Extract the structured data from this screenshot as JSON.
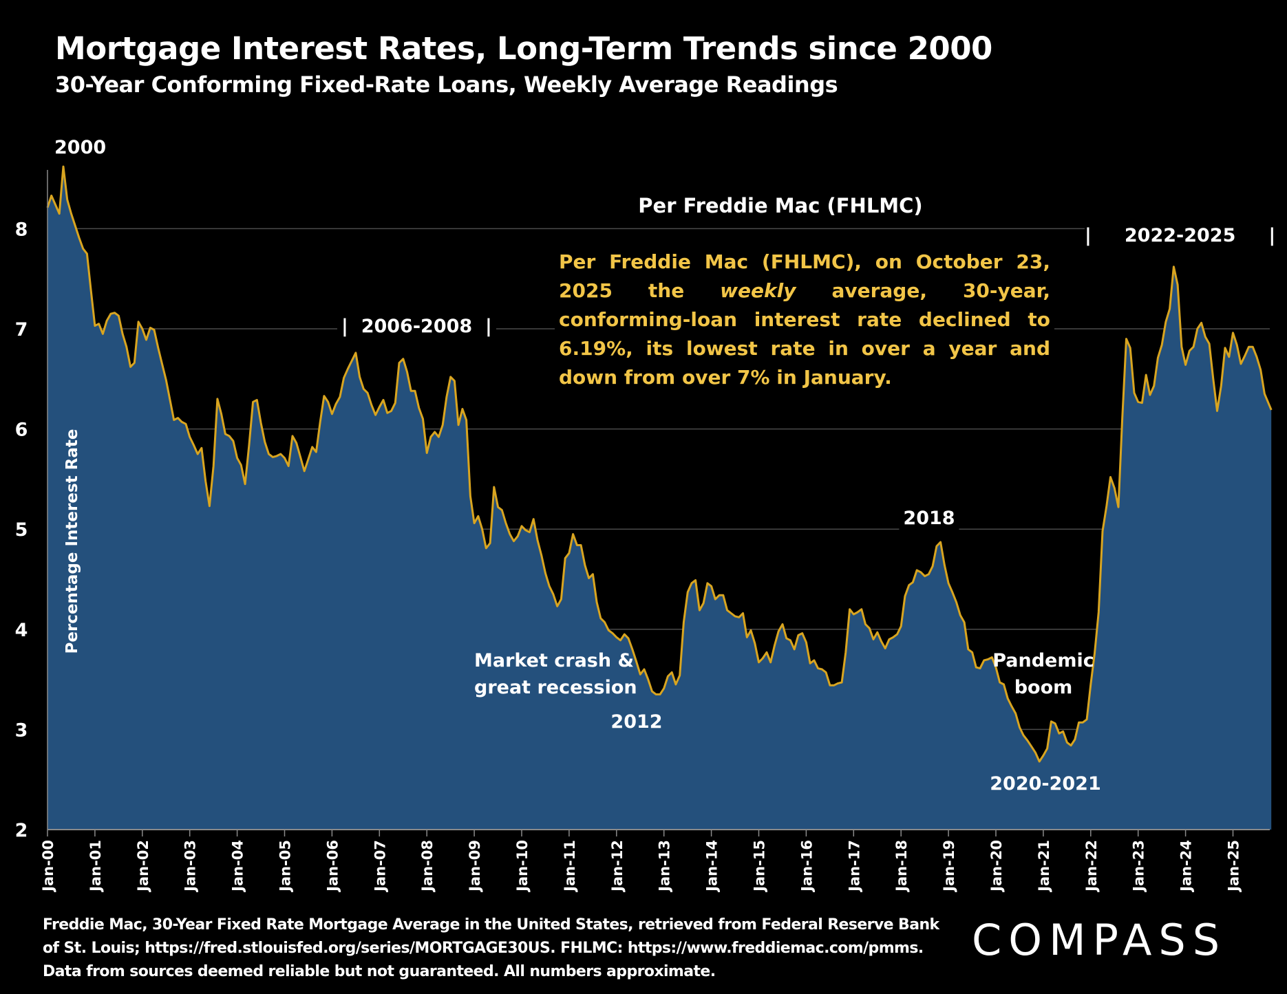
{
  "header": {
    "title": "Mortgage Interest Rates, Long-Term Trends since 2000",
    "subtitle": "30-Year Conforming Fixed-Rate Loans, Weekly Average Readings"
  },
  "annotations": {
    "year_2000": "2000",
    "source_label": "Per Freddie Mac (FHLMC)",
    "period_2006_2008": "2006-2008",
    "period_2022_2025": "2022-2025",
    "bar": "|",
    "label_2018": "2018",
    "market_crash_line1": "Market crash &",
    "market_crash_line2": "great recession",
    "label_2012": "2012",
    "pandemic_line1": "Pandemic",
    "pandemic_line2": "boom",
    "label_2020_2021": "2020-2021",
    "note_part1": "Per Freddie Mac (FHLMC), on October 23, 2025 the ",
    "note_italic": "weekly",
    "note_part2": " average, 30-year, conforming-loan interest rate declined to 6.19%, its lowest rate in over a year and down from over 7% in January."
  },
  "footer": {
    "line1": "Freddie Mac, 30-Year Fixed Rate Mortgage Average in the United States, retrieved from Federal Reserve Bank",
    "line2": "of St. Louis; https://fred.stlouisfed.org/series/MORTGAGE30US. FHLMC: https://www.freddiemac.com/pmms.",
    "line3": "Data from sources deemed reliable but not guaranteed. All numbers approximate."
  },
  "logo": "COMPASS",
  "colors": {
    "background": "#000000",
    "area_fill": "#24507c",
    "line": "#d9a520",
    "note_text": "#f2c547",
    "grid": "#4a4a4a"
  },
  "chart_data": {
    "type": "area",
    "title": "Mortgage Interest Rates, Long-Term Trends since 2000",
    "ylabel": "Percentage Interest Rate",
    "xlabel": "",
    "ylim": [
      2,
      8.6
    ],
    "yticks": [
      2,
      3,
      4,
      5,
      6,
      7,
      8
    ],
    "grid": "horizontal",
    "xticks": [
      "Jan-00",
      "Jan-01",
      "Jan-02",
      "Jan-03",
      "Jan-04",
      "Jan-05",
      "Jan-06",
      "Jan-07",
      "Jan-08",
      "Jan-09",
      "Jan-10",
      "Jan-11",
      "Jan-12",
      "Jan-13",
      "Jan-14",
      "Jan-15",
      "Jan-16",
      "Jan-17",
      "Jan-18",
      "Jan-19",
      "Jan-20",
      "Jan-21",
      "Jan-22",
      "Jan-23",
      "Jan-24",
      "Jan-25"
    ],
    "start": "2000-01",
    "frequency": "monthly",
    "values": [
      8.21,
      8.33,
      8.24,
      8.15,
      8.62,
      8.29,
      8.15,
      8.03,
      7.91,
      7.8,
      7.75,
      7.38,
      7.03,
      7.05,
      6.95,
      7.08,
      7.15,
      7.16,
      7.13,
      6.95,
      6.82,
      6.62,
      6.66,
      7.07,
      7.0,
      6.89,
      7.01,
      6.99,
      6.81,
      6.65,
      6.49,
      6.29,
      6.09,
      6.11,
      6.07,
      6.05,
      5.92,
      5.84,
      5.75,
      5.81,
      5.48,
      5.23,
      5.63,
      6.3,
      6.15,
      5.95,
      5.93,
      5.88,
      5.71,
      5.64,
      5.45,
      5.83,
      6.27,
      6.29,
      6.06,
      5.87,
      5.75,
      5.72,
      5.73,
      5.75,
      5.71,
      5.63,
      5.93,
      5.86,
      5.72,
      5.58,
      5.7,
      5.82,
      5.77,
      6.07,
      6.33,
      6.27,
      6.15,
      6.25,
      6.32,
      6.51,
      6.6,
      6.68,
      6.76,
      6.52,
      6.4,
      6.36,
      6.24,
      6.14,
      6.22,
      6.29,
      6.16,
      6.18,
      6.26,
      6.66,
      6.7,
      6.57,
      6.38,
      6.38,
      6.21,
      6.1,
      5.76,
      5.92,
      5.97,
      5.92,
      6.04,
      6.32,
      6.52,
      6.48,
      6.04,
      6.2,
      6.09,
      5.33,
      5.06,
      5.13,
      5.0,
      4.81,
      4.86,
      5.42,
      5.22,
      5.19,
      5.06,
      4.95,
      4.88,
      4.93,
      5.03,
      4.99,
      4.97,
      5.1,
      4.89,
      4.74,
      4.56,
      4.43,
      4.35,
      4.23,
      4.3,
      4.71,
      4.76,
      4.95,
      4.84,
      4.84,
      4.64,
      4.51,
      4.55,
      4.27,
      4.11,
      4.07,
      3.99,
      3.96,
      3.92,
      3.89,
      3.95,
      3.91,
      3.8,
      3.68,
      3.55,
      3.6,
      3.5,
      3.38,
      3.35,
      3.35,
      3.41,
      3.53,
      3.57,
      3.45,
      3.54,
      4.07,
      4.37,
      4.46,
      4.49,
      4.19,
      4.26,
      4.46,
      4.43,
      4.3,
      4.34,
      4.34,
      4.19,
      4.16,
      4.13,
      4.12,
      4.16,
      3.92,
      3.99,
      3.86,
      3.67,
      3.71,
      3.77,
      3.67,
      3.84,
      3.98,
      4.05,
      3.91,
      3.89,
      3.8,
      3.94,
      3.96,
      3.87,
      3.66,
      3.69,
      3.61,
      3.6,
      3.57,
      3.44,
      3.44,
      3.46,
      3.47,
      3.77,
      4.2,
      4.15,
      4.17,
      4.2,
      4.05,
      4.01,
      3.9,
      3.97,
      3.88,
      3.81,
      3.9,
      3.92,
      3.95,
      4.03,
      4.33,
      4.44,
      4.47,
      4.59,
      4.57,
      4.53,
      4.55,
      4.63,
      4.83,
      4.87,
      4.64,
      4.46,
      4.37,
      4.27,
      4.14,
      4.07,
      3.8,
      3.77,
      3.62,
      3.61,
      3.69,
      3.7,
      3.72,
      3.62,
      3.47,
      3.45,
      3.31,
      3.23,
      3.16,
      3.02,
      2.94,
      2.89,
      2.83,
      2.77,
      2.68,
      2.74,
      2.81,
      3.08,
      3.06,
      2.96,
      2.98,
      2.87,
      2.84,
      2.9,
      3.07,
      3.07,
      3.1,
      3.45,
      3.76,
      4.17,
      4.98,
      5.23,
      5.52,
      5.41,
      5.22,
      6.11,
      6.9,
      6.81,
      6.36,
      6.27,
      6.26,
      6.54,
      6.34,
      6.43,
      6.71,
      6.84,
      7.07,
      7.2,
      7.62,
      7.44,
      6.82,
      6.64,
      6.78,
      6.82,
      7.0,
      7.06,
      6.92,
      6.85,
      6.5,
      6.18,
      6.43,
      6.81,
      6.72,
      6.96,
      6.84,
      6.65,
      6.73,
      6.82,
      6.82,
      6.72,
      6.59,
      6.35,
      6.19
    ]
  }
}
